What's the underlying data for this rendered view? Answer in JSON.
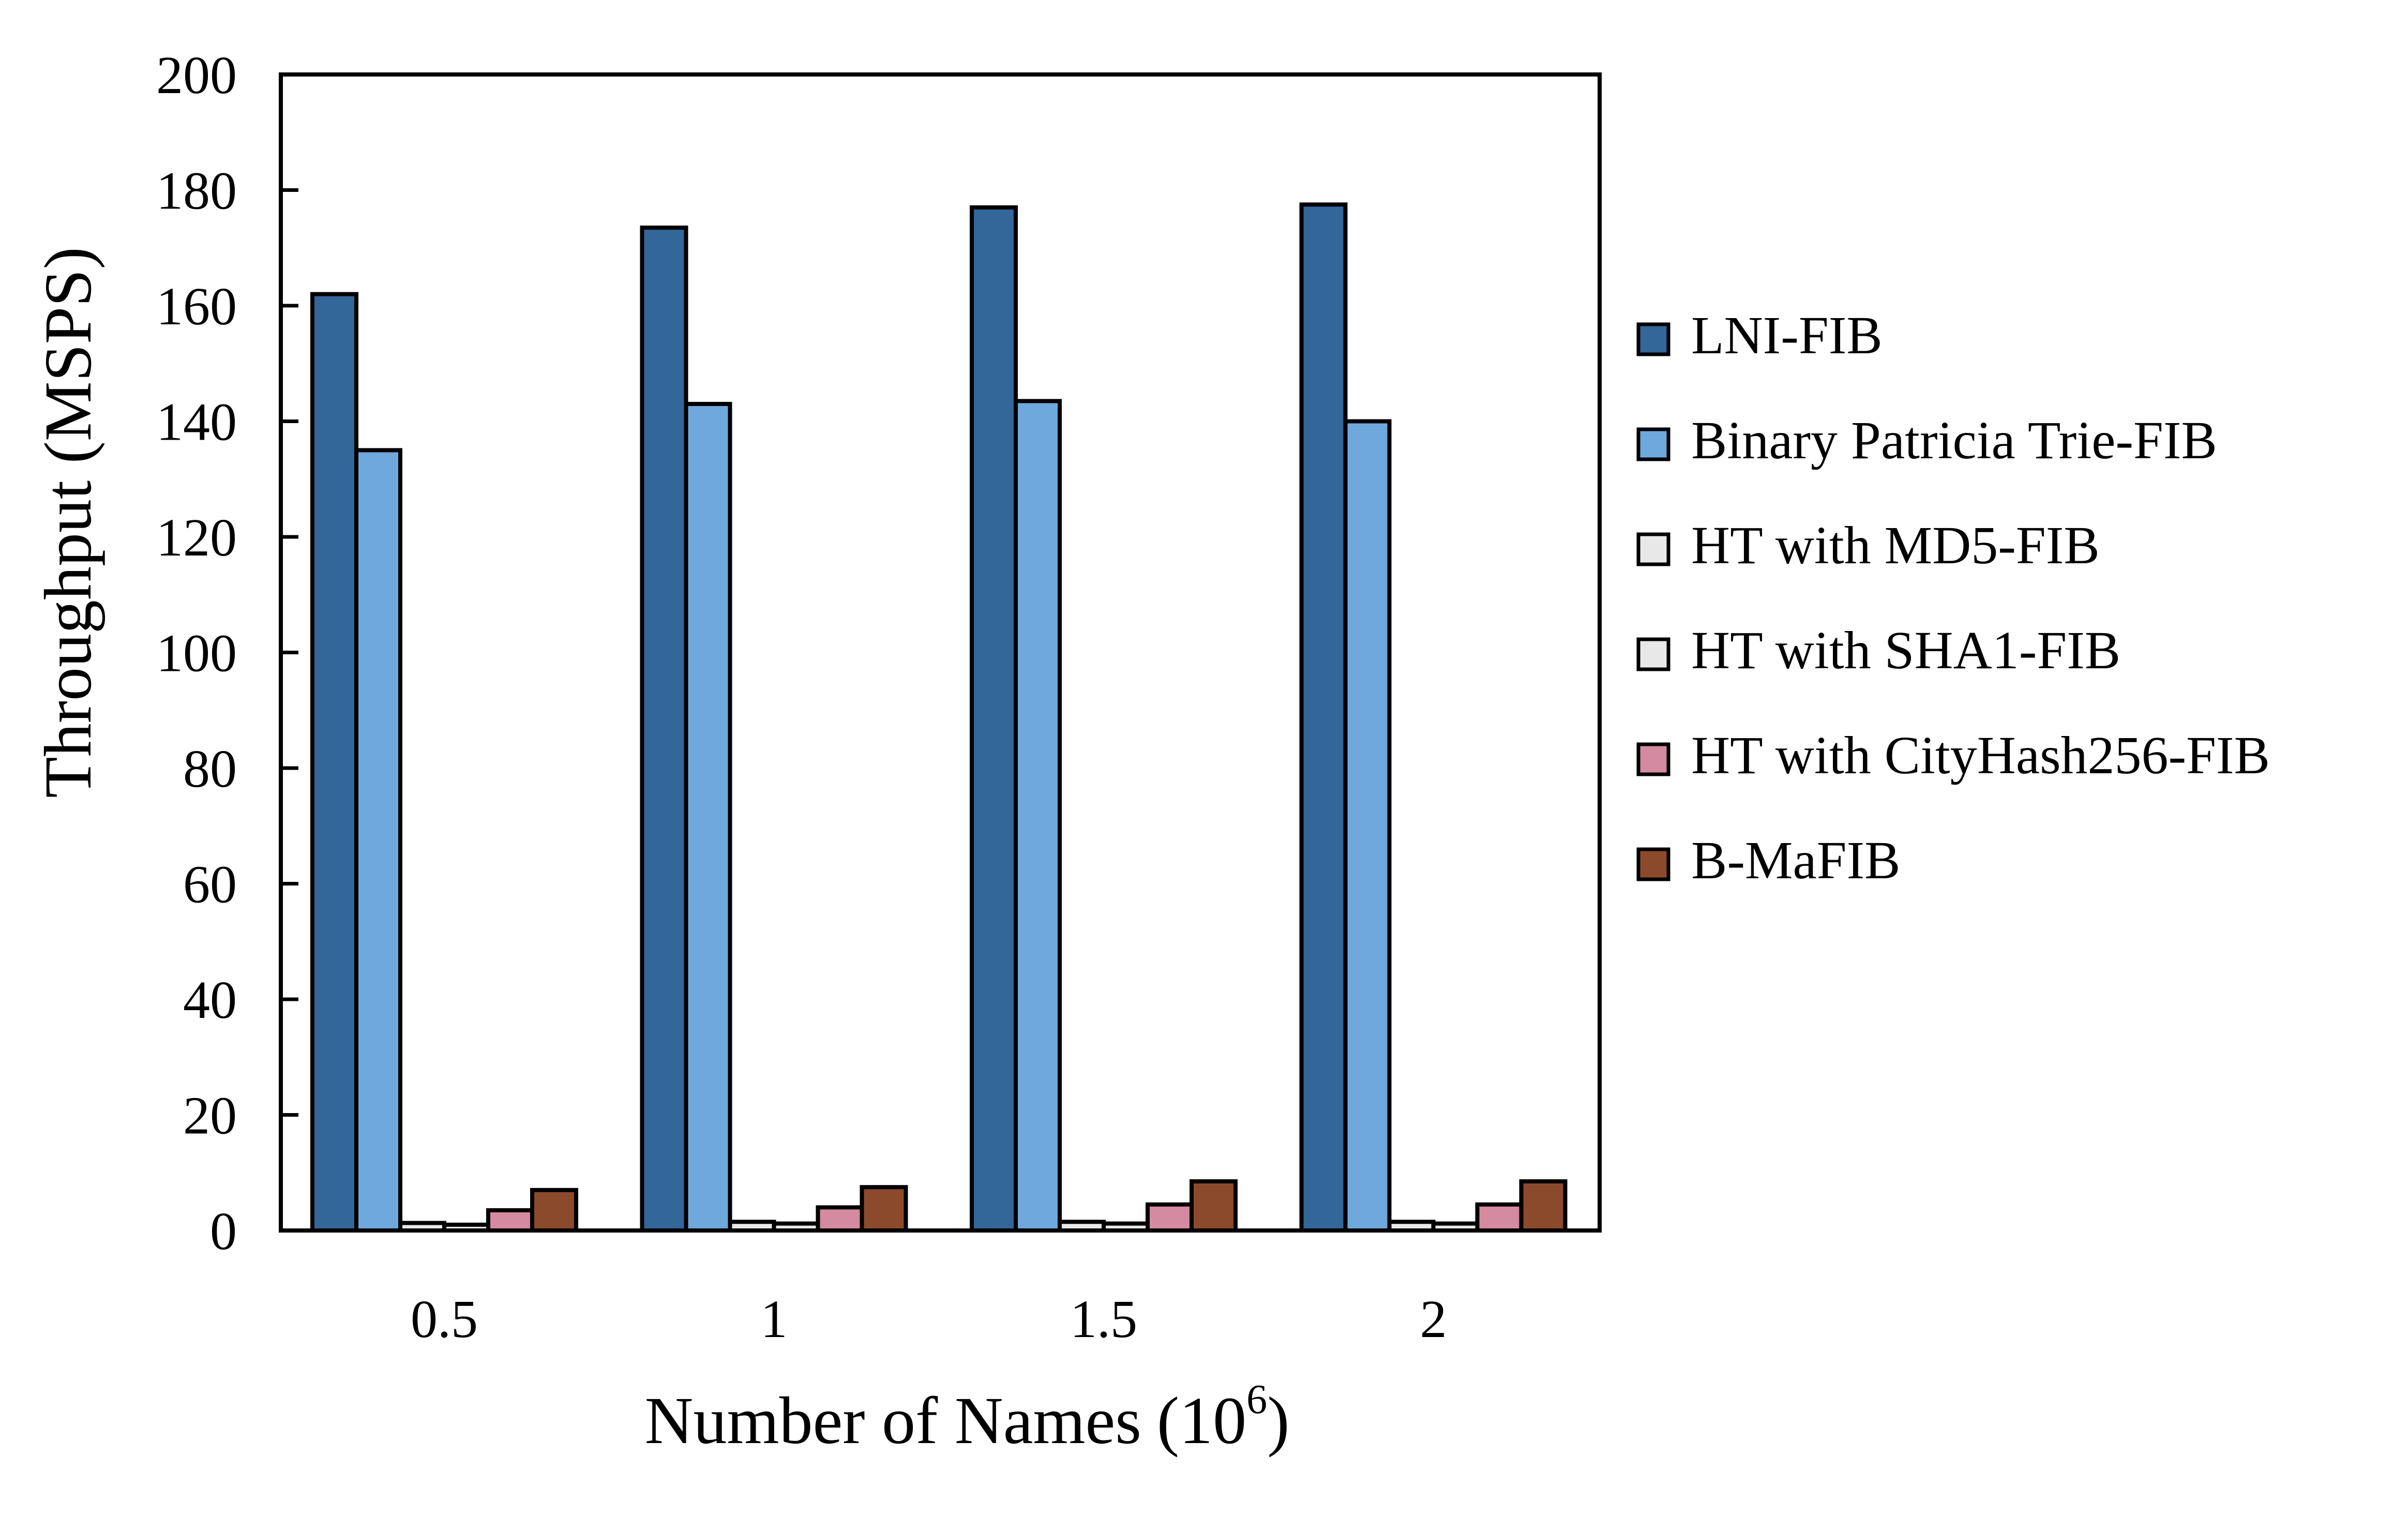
{
  "chart_data": {
    "type": "bar",
    "xlabel": "Number of Names",
    "xlabel_unit_base": "(10",
    "xlabel_unit_exp": "6",
    "xlabel_unit_close": ")",
    "ylabel": "Throughput  (MSPS)",
    "ylim": [
      0,
      200
    ],
    "yticks": [
      0,
      20,
      40,
      60,
      80,
      100,
      120,
      140,
      160,
      180,
      200
    ],
    "categories": [
      "0.5",
      "1",
      "1.5",
      "2"
    ],
    "grid": false,
    "legend_position": "right",
    "series": [
      {
        "name": "LNI-FIB",
        "color": "#336699",
        "values": [
          162,
          173.5,
          177,
          177.5
        ]
      },
      {
        "name": "Binary Patricia Trie-FIB",
        "color": "#6fa8dc",
        "values": [
          135,
          143,
          143.5,
          140
        ]
      },
      {
        "name": "HT with MD5-FIB",
        "color": "#e8e8e8",
        "values": [
          1.3,
          1.5,
          1.5,
          1.5
        ]
      },
      {
        "name": "HT with SHA1-FIB",
        "color": "#e8e8e8",
        "values": [
          1.0,
          1.2,
          1.2,
          1.2
        ]
      },
      {
        "name": "HT with CityHash256-FIB",
        "color": "#d48aa0",
        "values": [
          3.5,
          4.0,
          4.5,
          4.5
        ]
      },
      {
        "name": "B-MaFIB",
        "color": "#8b4a2b",
        "values": [
          7.0,
          7.5,
          8.5,
          8.5
        ]
      }
    ]
  }
}
